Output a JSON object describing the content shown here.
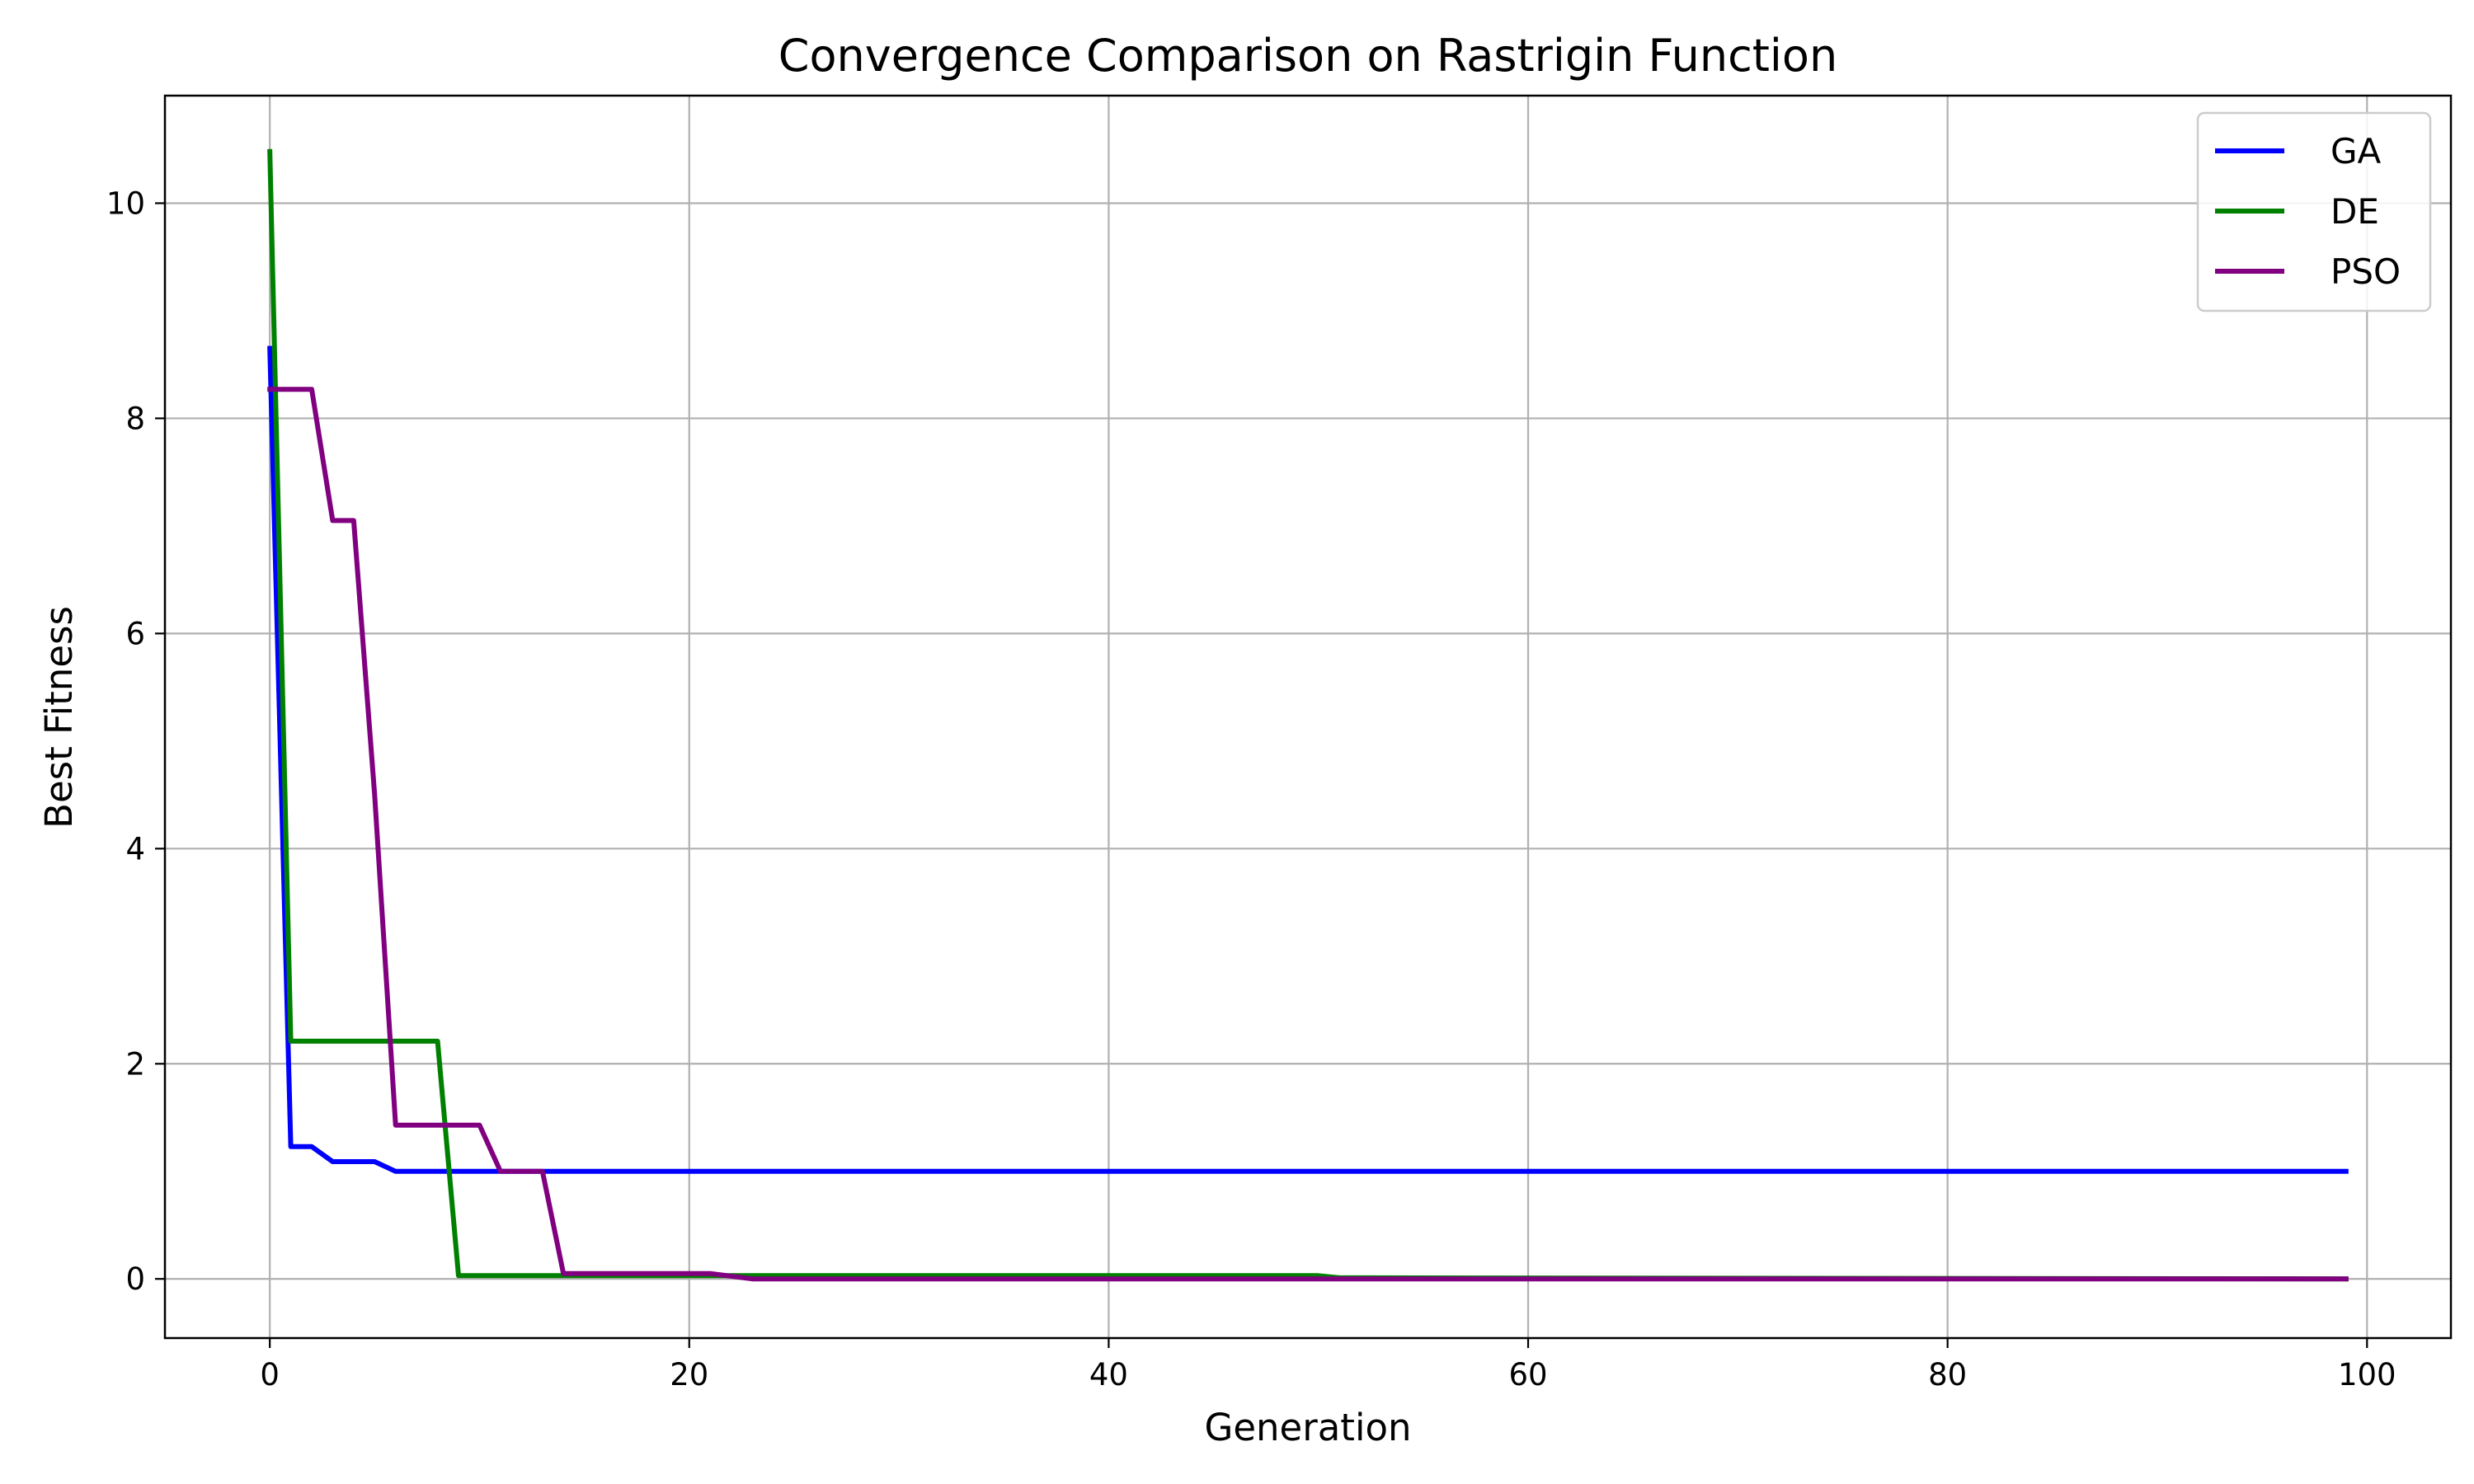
{
  "chart_data": {
    "type": "line",
    "title": "Convergence Comparison on Rastrigin Function",
    "xlabel": "Generation",
    "ylabel": "Best Fitness",
    "xlim": [
      -5,
      104
    ],
    "ylim": [
      -0.55,
      11.0
    ],
    "xticks": [
      0,
      20,
      40,
      60,
      80,
      100
    ],
    "yticks": [
      0,
      2,
      4,
      6,
      8,
      10
    ],
    "grid": true,
    "legend_position": "top-right",
    "series": [
      {
        "name": "GA",
        "color": "#0000ff",
        "x": [
          0,
          1,
          2,
          3,
          4,
          5,
          6,
          7,
          8,
          99
        ],
        "y": [
          8.65,
          1.23,
          1.23,
          1.09,
          1.09,
          1.09,
          1.0,
          1.0,
          1.0,
          1.0
        ]
      },
      {
        "name": "DE",
        "color": "#008000",
        "x": [
          0,
          1,
          2,
          3,
          4,
          5,
          6,
          7,
          8,
          9,
          50,
          51,
          99
        ],
        "y": [
          10.48,
          2.21,
          2.21,
          2.21,
          2.21,
          2.21,
          2.21,
          2.21,
          2.21,
          0.03,
          0.03,
          0.01,
          0.0
        ]
      },
      {
        "name": "PSO",
        "color": "#800080",
        "x": [
          0,
          1,
          2,
          3,
          4,
          5,
          6,
          7,
          8,
          9,
          10,
          11,
          12,
          13,
          14,
          21,
          23,
          99
        ],
        "y": [
          8.27,
          8.27,
          8.27,
          7.05,
          7.05,
          4.5,
          1.43,
          1.43,
          1.43,
          1.43,
          1.43,
          1.0,
          1.0,
          1.0,
          0.05,
          0.05,
          0.0,
          0.0
        ]
      }
    ]
  }
}
